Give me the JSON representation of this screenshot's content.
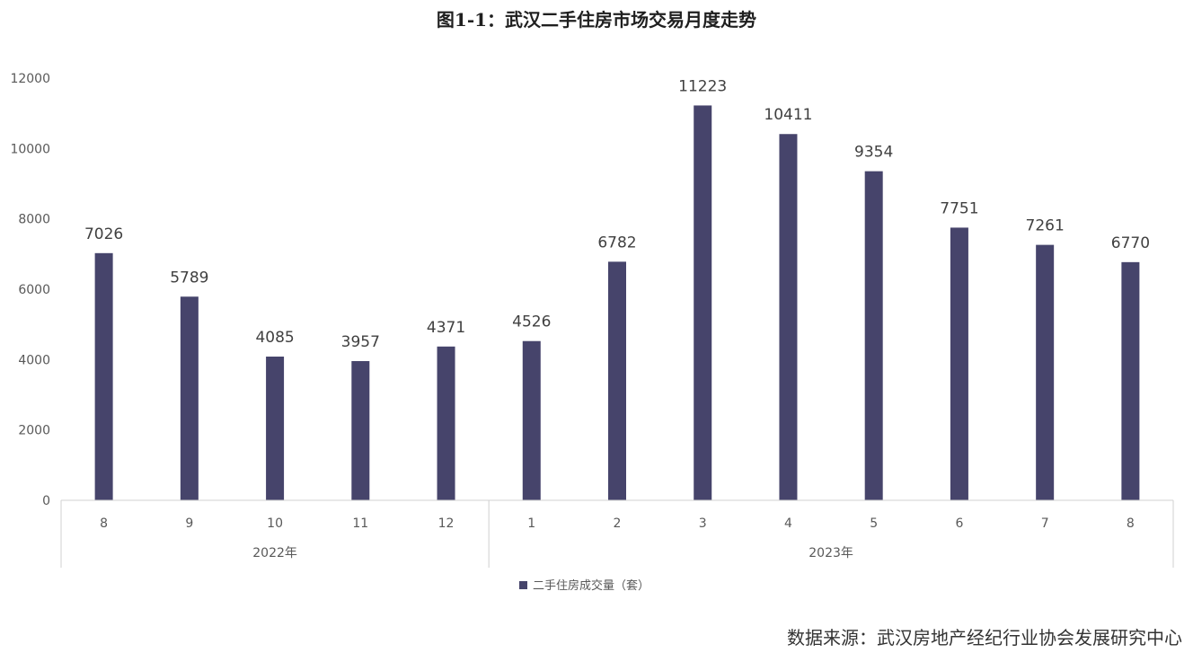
{
  "chart_data": {
    "type": "bar",
    "title": "图1-1：武汉二手住房市场交易月度走势",
    "source": "数据来源：武汉房地产经纪行业协会发展研究中心",
    "categories": [
      "8",
      "9",
      "10",
      "11",
      "12",
      "1",
      "2",
      "3",
      "4",
      "5",
      "6",
      "7",
      "8"
    ],
    "groups": [
      {
        "label": "2022年",
        "count": 5
      },
      {
        "label": "2023年",
        "count": 8
      }
    ],
    "series": [
      {
        "name": "二手住房成交量（套）",
        "values": [
          7026,
          5789,
          4085,
          3957,
          4371,
          4526,
          6782,
          11223,
          10411,
          9354,
          7751,
          7261,
          6770
        ]
      }
    ],
    "yticks": [
      "0",
      "2000",
      "4000",
      "6000",
      "8000",
      "10000",
      "12000"
    ],
    "ylim": [
      0,
      12000
    ],
    "grid": false,
    "legend_position": "bottom",
    "bar_color": "#46446b",
    "data_labels": true
  }
}
